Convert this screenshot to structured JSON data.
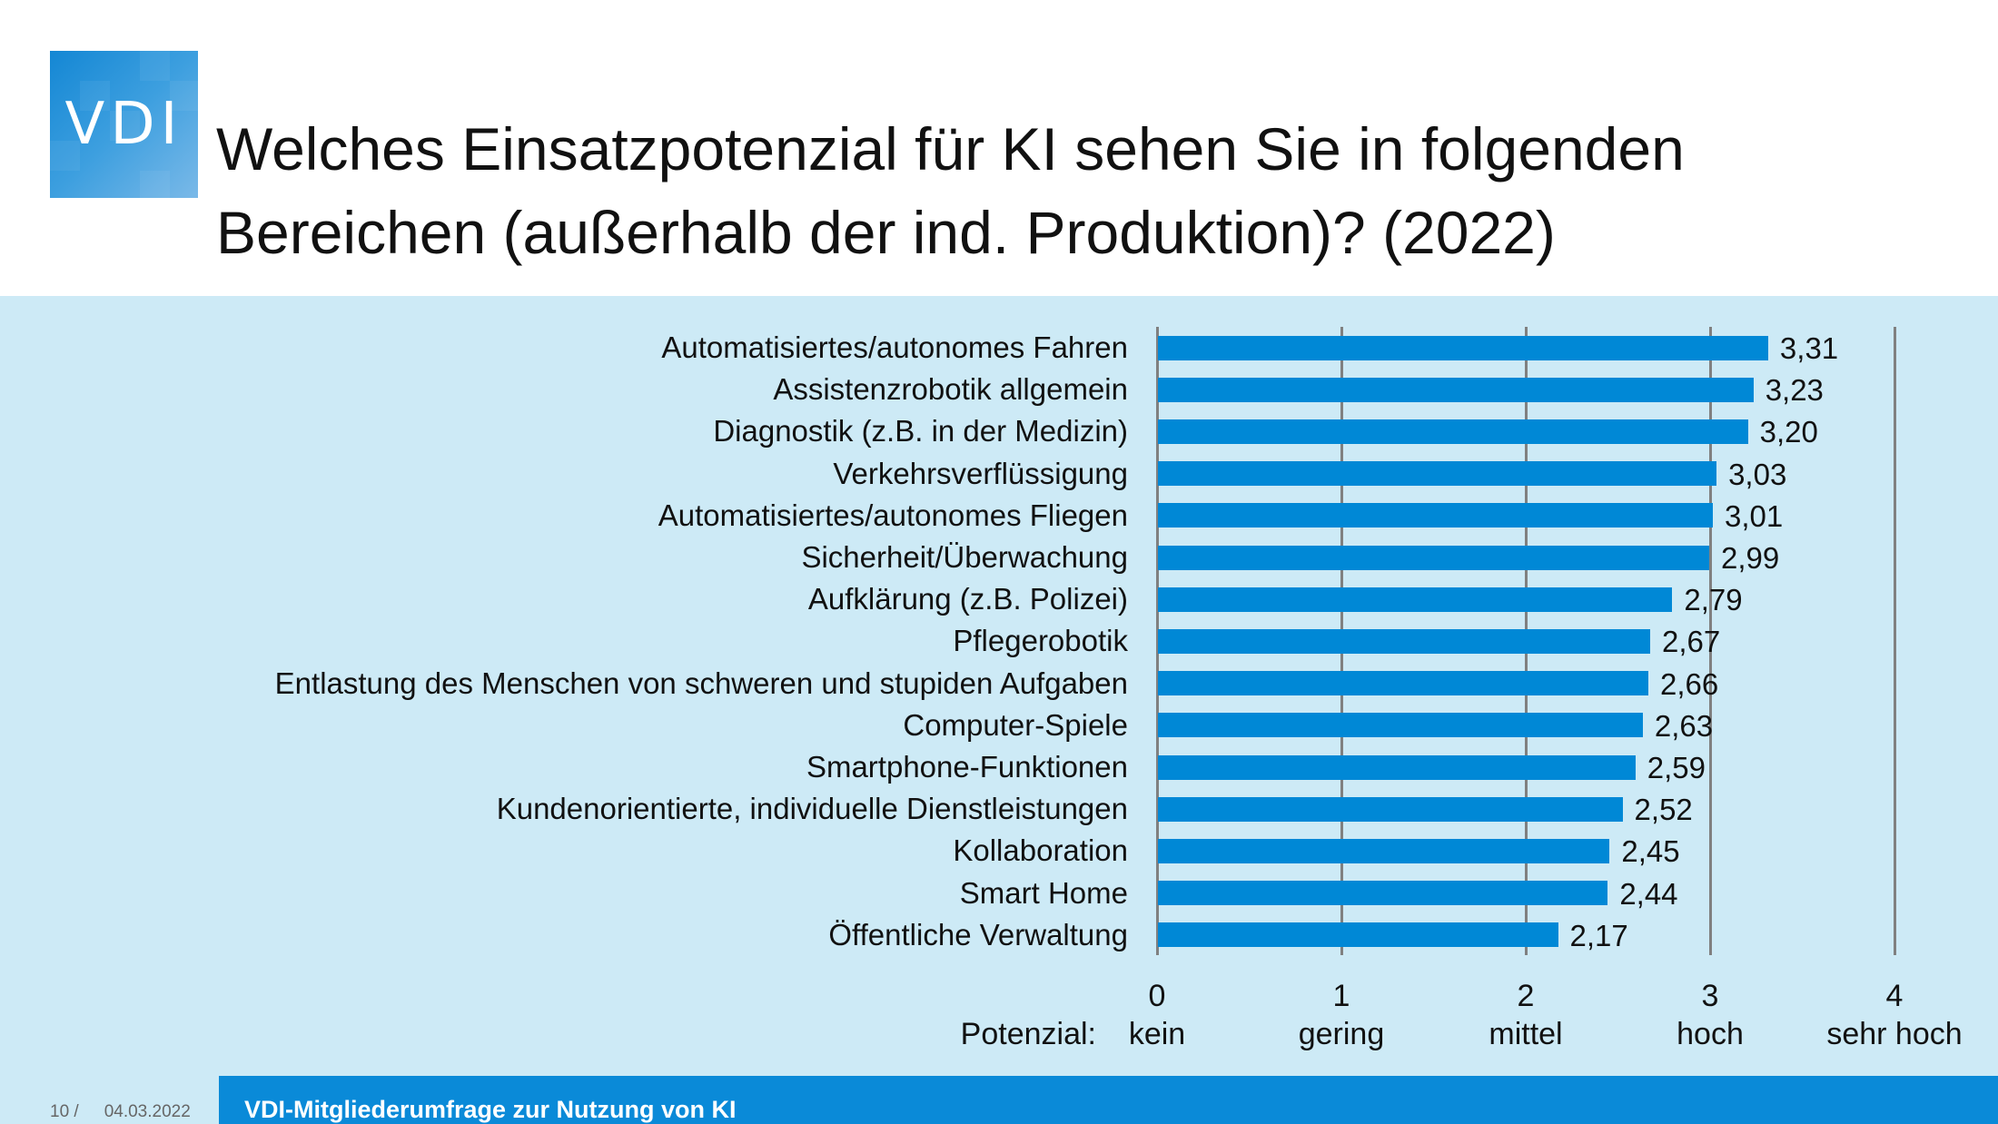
{
  "logo": {
    "text": "VDI"
  },
  "title": {
    "line1": "Welches Einsatzpotenzial für KI sehen Sie in folgenden",
    "line2": "Bereichen (außerhalb der ind. Produktion)? (2022)"
  },
  "footer": {
    "page": "10 /",
    "date": "04.03.2022",
    "banner": "VDI-Mitgliederumfrage zur Nutzung von KI"
  },
  "colors": {
    "bar": "#0088d6",
    "background": "#cdeaf6",
    "footer": "#0a8ad8"
  },
  "chart_data": {
    "type": "bar",
    "orientation": "horizontal",
    "title": "Welches Einsatzpotenzial für KI sehen Sie in folgenden Bereichen (außerhalb der ind. Produktion)? (2022)",
    "categories": [
      "Automatisiertes/autonomes Fahren",
      "Assistenzrobotik allgemein",
      "Diagnostik (z.B. in der Medizin)",
      "Verkehrsverflüssigung",
      "Automatisiertes/autonomes Fliegen",
      "Sicherheit/Überwachung",
      "Aufklärung (z.B. Polizei)",
      "Pflegerobotik",
      "Entlastung des Menschen von schweren und stupiden Aufgaben",
      "Computer-Spiele",
      "Smartphone-Funktionen",
      "Kundenorientierte, individuelle Dienstleistungen",
      "Kollaboration",
      "Smart Home",
      "Öffentliche Verwaltung"
    ],
    "values": [
      3.31,
      3.23,
      3.2,
      3.03,
      3.01,
      2.99,
      2.79,
      2.67,
      2.66,
      2.63,
      2.59,
      2.52,
      2.45,
      2.44,
      2.17
    ],
    "value_labels": [
      "3,31",
      "3,23",
      "3,20",
      "3,03",
      "3,01",
      "2,99",
      "2,79",
      "2,67",
      "2,66",
      "2,63",
      "2,59",
      "2,52",
      "2,45",
      "2,44",
      "2,17"
    ],
    "xlim": [
      0,
      4
    ],
    "xticks": [
      "0",
      "1",
      "2",
      "3",
      "4"
    ],
    "xtick_categories": [
      "kein",
      "gering",
      "mittel",
      "hoch",
      "sehr hoch"
    ],
    "xlabel": "Potenzial:",
    "grid": true
  }
}
